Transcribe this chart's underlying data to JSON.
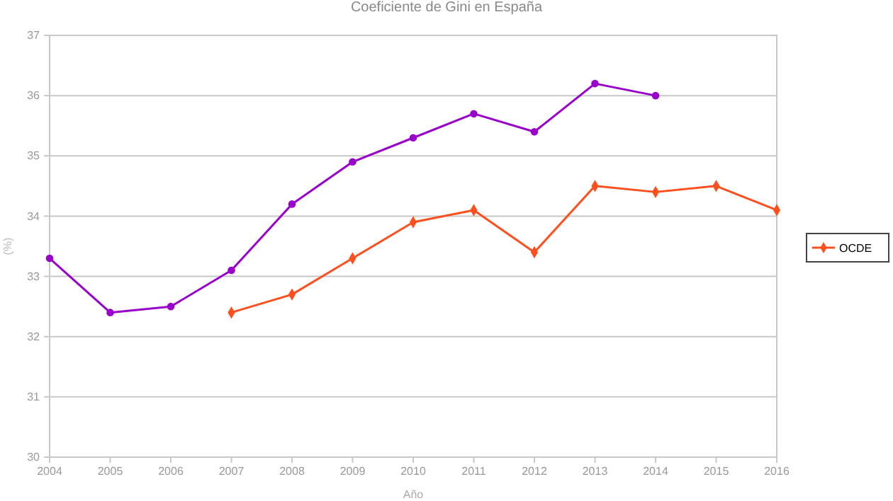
{
  "chart_data": {
    "type": "line",
    "title": "Coeficiente de Gini en España",
    "xlabel": "Año",
    "ylabel": "(%)",
    "x": [
      2004,
      2005,
      2006,
      2007,
      2008,
      2009,
      2010,
      2011,
      2012,
      2013,
      2014,
      2015,
      2016
    ],
    "xlim": [
      2004,
      2016
    ],
    "xticks": [
      2004,
      2005,
      2006,
      2007,
      2008,
      2009,
      2010,
      2011,
      2012,
      2013,
      2014,
      2015,
      2016
    ],
    "ylim": [
      30,
      37
    ],
    "yticks": [
      30,
      31,
      32,
      33,
      34,
      35,
      36,
      37
    ],
    "grid": "y",
    "legend": "right",
    "series": [
      {
        "color": "#9900cc",
        "marker": "circle",
        "values": [
          33.3,
          32.4,
          32.5,
          33.1,
          34.2,
          34.9,
          35.3,
          35.7,
          35.4,
          36.2,
          36.0,
          null,
          null
        ]
      },
      {
        "name": "OCDE",
        "color": "#ff4f1f",
        "marker": "diamond",
        "values": [
          null,
          null,
          null,
          32.4,
          32.7,
          33.3,
          33.9,
          34.1,
          33.4,
          34.5,
          34.4,
          34.5,
          34.1
        ]
      }
    ]
  }
}
